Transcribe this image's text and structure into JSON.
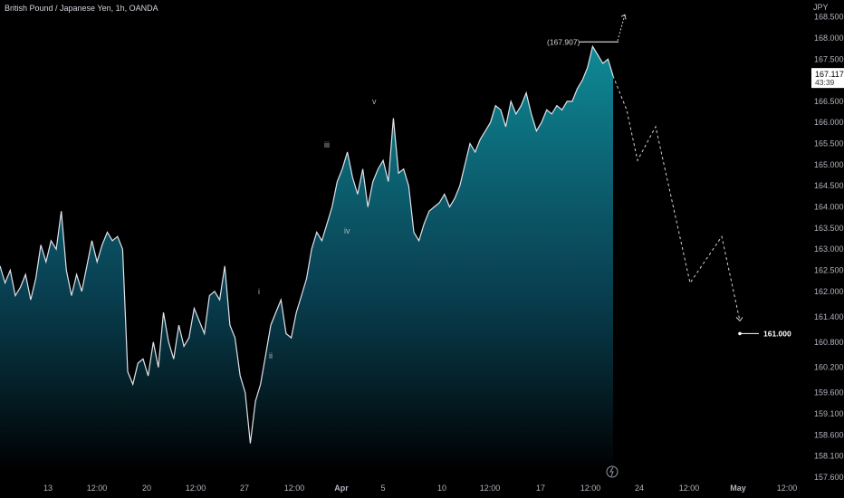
{
  "header": {
    "symbol": "British Pound / Japanese Yen, 1h, OANDA"
  },
  "price_axis": {
    "currency": "JPY",
    "current_price": "167.117",
    "countdown": "43:39",
    "colors": {
      "area_top": "#0f8a96",
      "line": "#e0e3eb",
      "current_badge": "#ffffff"
    }
  },
  "annotations": {
    "high_label": "(167.907)",
    "target_label": "161.000",
    "flash_icon": "lightning-icon"
  },
  "chart_data": {
    "type": "area",
    "title": "British Pound / Japanese Yen, 1h, OANDA",
    "ylabel": "JPY",
    "ylim": [
      157.45,
      168.9
    ],
    "y_ticks": [
      157.6,
      158.1,
      158.6,
      159.1,
      159.6,
      160.2,
      160.8,
      161.4,
      162.0,
      162.5,
      163.0,
      163.5,
      164.0,
      164.5,
      165.0,
      165.5,
      166.0,
      166.5,
      167.5,
      168.0,
      168.5
    ],
    "y_tick_labels": [
      "157.600",
      "158.100",
      "158.600",
      "159.100",
      "159.600",
      "160.200",
      "160.800",
      "161.400",
      "162.000",
      "162.500",
      "163.000",
      "163.500",
      "164.000",
      "164.500",
      "165.000",
      "165.500",
      "166.000",
      "166.500",
      "167.500",
      "168.000",
      "168.500"
    ],
    "x_tick_labels": [
      "13",
      "12:00",
      "20",
      "12:00",
      "27",
      "12:00",
      "Apr",
      "5",
      "10",
      "12:00",
      "17",
      "12:00",
      "24",
      "12:00",
      "May",
      "12:00"
    ],
    "series": [
      {
        "price": [
          162.6,
          162.2,
          162.5,
          161.9,
          162.1,
          162.4,
          161.8,
          162.3,
          163.1,
          162.7,
          163.2,
          163.0,
          163.9,
          162.5,
          161.9,
          162.4,
          162.0,
          162.6,
          163.2,
          162.7,
          163.1,
          163.4,
          163.2,
          163.3,
          163.0,
          160.1,
          159.8,
          160.3,
          160.4,
          160.0,
          160.8,
          160.2,
          161.5,
          160.8,
          160.4,
          161.2,
          160.7,
          160.9,
          161.6,
          161.3,
          161.0,
          161.9,
          162.0,
          161.8,
          162.6,
          161.2,
          160.9,
          160.0,
          159.6,
          158.4,
          159.4,
          159.8,
          160.5,
          161.2,
          161.5,
          161.8,
          161.0,
          160.9,
          161.5,
          161.9,
          162.3,
          163.0,
          163.4,
          163.2,
          163.6,
          164.0,
          164.6,
          164.9,
          165.3,
          164.7,
          164.3,
          164.9,
          164.0,
          164.6,
          164.9,
          165.1,
          164.6,
          166.1,
          164.8,
          164.9,
          164.5,
          163.4,
          163.2,
          163.6,
          163.9,
          164.0,
          164.1,
          164.3,
          164.0,
          164.2,
          164.5,
          165.0,
          165.5,
          165.3,
          165.6,
          165.8,
          166.0,
          166.4,
          166.3,
          165.9,
          166.5,
          166.2,
          166.4,
          166.7,
          166.2,
          165.8,
          166.0,
          166.3,
          166.2,
          166.4,
          166.3,
          166.5,
          166.5,
          166.8,
          167.0,
          167.3,
          167.8,
          167.6,
          167.4,
          167.5,
          167.1
        ]
      }
    ],
    "wave_labels": [
      "i",
      "ii",
      "iii",
      "iv",
      "v"
    ],
    "projection_path_prices": [
      167.1,
      166.3,
      165.1,
      165.9,
      162.2,
      163.3,
      161.3
    ],
    "projected_high_price": 168.55,
    "high_price": 167.907,
    "target_price": 161.0
  }
}
